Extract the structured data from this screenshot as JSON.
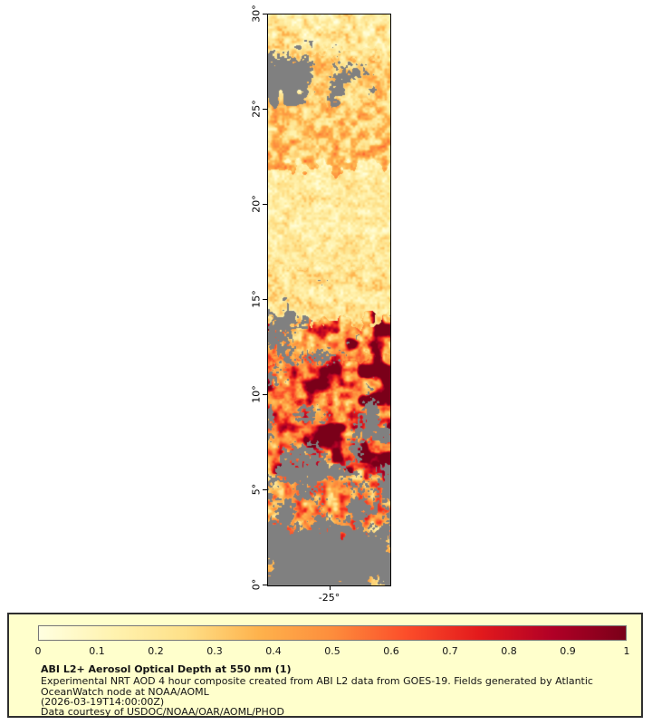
{
  "window": {
    "background": "#ffffff"
  },
  "map": {
    "y_axis": {
      "ticks": [
        "30°",
        "25°",
        "20°",
        "15°",
        "10°",
        "5°",
        "0°"
      ],
      "lat_values": [
        30,
        25,
        20,
        15,
        10,
        5,
        0
      ]
    },
    "x_axis": {
      "ticks": [
        "-25°"
      ],
      "lon_values": [
        -25
      ]
    }
  },
  "legend": {
    "background": "#ffffcc",
    "border_color": "#2f2f2f",
    "colorbar_ticks": [
      "0",
      "0.1",
      "0.2",
      "0.3",
      "0.4",
      "0.5",
      "0.6",
      "0.7",
      "0.8",
      "0.9",
      "1"
    ],
    "title": "ABI L2+ Aerosol Optical Depth at 550 nm (1)",
    "description": "Experimental NRT AOD 4 hour composite created from ABI L2 data from GOES-19. Fields generated by Atlantic OceanWatch node at NOAA/AOML",
    "timestamp": "(2026-03-19T14:00:00Z)",
    "credit": "Data courtesy of USDOC/NOAA/OAR/AOML/PHOD"
  },
  "chart_data": {
    "type": "heatmap",
    "title": "ABI L2+ Aerosol Optical Depth at 550 nm (1)",
    "variable": "Aerosol Optical Depth at 550 nm",
    "units": "1",
    "source": "ABI L2 data from GOES-19",
    "time_shown": "2026-03-19T14:00:00Z",
    "lat_range": [
      0,
      30
    ],
    "lon_center_tick": -25,
    "nodata_color": "#808080",
    "colorbar": {
      "range": [
        0,
        1
      ],
      "ticks": [
        0,
        0.1,
        0.2,
        0.3,
        0.4,
        0.5,
        0.6,
        0.7,
        0.8,
        0.9,
        1
      ],
      "colormap_stops": [
        {
          "t": 0.0,
          "color": "#ffffe0"
        },
        {
          "t": 0.125,
          "color": "#fff3b0"
        },
        {
          "t": 0.25,
          "color": "#fee088"
        },
        {
          "t": 0.375,
          "color": "#feb24c"
        },
        {
          "t": 0.5,
          "color": "#fd8d3c"
        },
        {
          "t": 0.625,
          "color": "#fc4e2a"
        },
        {
          "t": 0.75,
          "color": "#e31a1c"
        },
        {
          "t": 0.875,
          "color": "#b10026"
        },
        {
          "t": 1.0,
          "color": "#7a0019"
        }
      ]
    },
    "lat_bands": [
      {
        "lat_min": 28,
        "lat_max": 30,
        "aod_base": 0.2,
        "aod_var": 0.15,
        "cloud_frac": 0.06,
        "cloud_side": "right",
        "hotspot": false
      },
      {
        "lat_min": 25.5,
        "lat_max": 28,
        "aod_base": 0.28,
        "aod_var": 0.18,
        "cloud_frac": 0.5,
        "cloud_side": "left",
        "hotspot": false
      },
      {
        "lat_min": 22,
        "lat_max": 25.5,
        "aod_base": 0.33,
        "aod_var": 0.2,
        "cloud_frac": 0.05,
        "cloud_side": "all",
        "hotspot": false
      },
      {
        "lat_min": 17,
        "lat_max": 22,
        "aod_base": 0.17,
        "aod_var": 0.1,
        "cloud_frac": 0.03,
        "cloud_side": "all",
        "hotspot": false
      },
      {
        "lat_min": 14,
        "lat_max": 17,
        "aod_base": 0.22,
        "aod_var": 0.13,
        "cloud_frac": 0.12,
        "cloud_side": "all",
        "hotspot": false
      },
      {
        "lat_min": 12,
        "lat_max": 14,
        "aod_base": 0.38,
        "aod_var": 0.22,
        "cloud_frac": 0.3,
        "cloud_side": "left",
        "hotspot": true
      },
      {
        "lat_min": 10,
        "lat_max": 12,
        "aod_base": 0.5,
        "aod_var": 0.28,
        "cloud_frac": 0.3,
        "cloud_side": "left",
        "hotspot": true
      },
      {
        "lat_min": 6,
        "lat_max": 10,
        "aod_base": 0.55,
        "aod_var": 0.32,
        "cloud_frac": 0.38,
        "cloud_side": "all",
        "hotspot": true
      },
      {
        "lat_min": 3,
        "lat_max": 6,
        "aod_base": 0.45,
        "aod_var": 0.28,
        "cloud_frac": 0.45,
        "cloud_side": "all",
        "hotspot": false
      },
      {
        "lat_min": 0,
        "lat_max": 3,
        "aod_base": 0.3,
        "aod_var": 0.18,
        "cloud_frac": 0.68,
        "cloud_side": "all",
        "hotspot": false
      }
    ]
  }
}
